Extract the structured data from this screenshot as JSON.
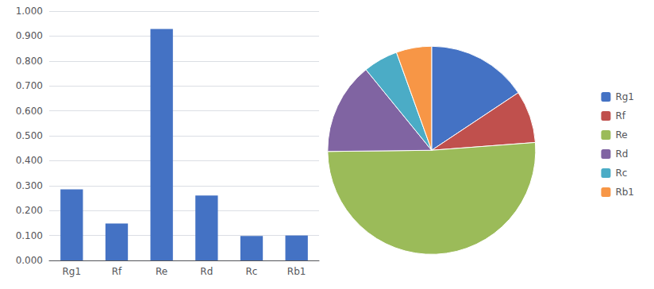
{
  "chart_data": [
    {
      "type": "bar",
      "categories": [
        "Rg1",
        "Rf",
        "Re",
        "Rd",
        "Rc",
        "Rb1"
      ],
      "values": [
        0.285,
        0.148,
        0.928,
        0.26,
        0.098,
        0.1
      ],
      "color": "#4472C4",
      "ylim": [
        0,
        1.0
      ],
      "yticks": [
        {
          "value": 0.0,
          "label": "0.000"
        },
        {
          "value": 0.1,
          "label": "0.100"
        },
        {
          "value": 0.2,
          "label": "0.200"
        },
        {
          "value": 0.3,
          "label": "0.300"
        },
        {
          "value": 0.4,
          "label": "0.400"
        },
        {
          "value": 0.5,
          "label": "0.500"
        },
        {
          "value": 0.6,
          "label": "0.600"
        },
        {
          "value": 0.7,
          "label": "0.700"
        },
        {
          "value": 0.8,
          "label": "0.800"
        },
        {
          "value": 0.9,
          "label": "0.900"
        },
        {
          "value": 1.0,
          "label": "1.000"
        }
      ],
      "grid": true
    },
    {
      "type": "pie",
      "categories": [
        "Rg1",
        "Rf",
        "Re",
        "Rd",
        "Rc",
        "Rb1"
      ],
      "values": [
        0.285,
        0.148,
        0.928,
        0.26,
        0.098,
        0.1
      ],
      "colors": [
        "#4472C4",
        "#C0504D",
        "#9BBB59",
        "#8064A2",
        "#4BACC6",
        "#F79646"
      ],
      "legend": "right"
    }
  ]
}
